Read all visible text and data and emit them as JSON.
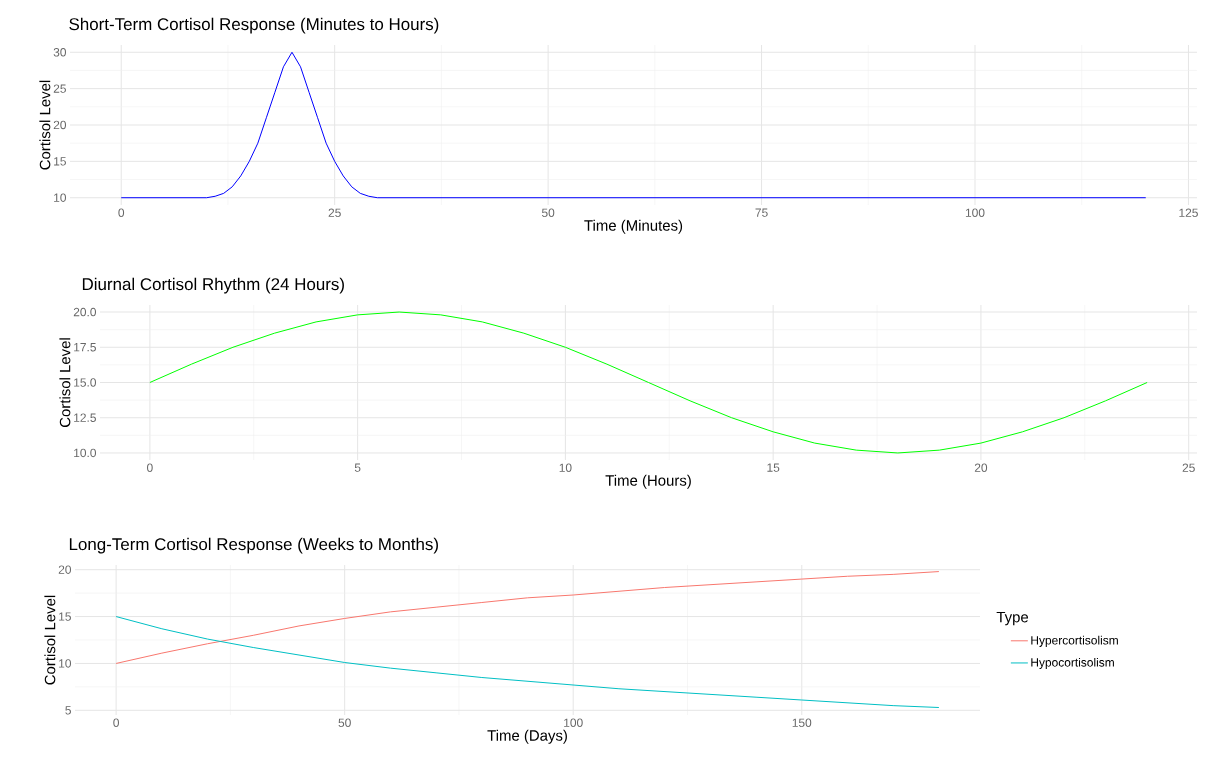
{
  "chart_data": [
    {
      "type": "line",
      "title": "Short-Term Cortisol Response (Minutes to Hours)",
      "xlabel": "Time (Minutes)",
      "ylabel": "Cortisol Level",
      "x": [
        0,
        10,
        11,
        12,
        13,
        14,
        15,
        16,
        17,
        18,
        19,
        20,
        21,
        22,
        23,
        24,
        25,
        26,
        27,
        28,
        29,
        30,
        120
      ],
      "values": [
        10,
        10,
        10.2,
        10.6,
        11.5,
        13,
        15,
        17.5,
        21,
        24.5,
        28,
        30,
        28,
        24.5,
        21,
        17.5,
        15,
        13,
        11.5,
        10.6,
        10.2,
        10,
        10
      ],
      "color": "#0000ff",
      "xlim": [
        -6,
        126
      ],
      "ylim": [
        9,
        31
      ],
      "xticks": [
        0,
        25,
        50,
        75,
        100,
        125
      ],
      "yticks": [
        10,
        15,
        20,
        25,
        30
      ],
      "grid": true
    },
    {
      "type": "line",
      "title": "Diurnal Cortisol Rhythm (24 Hours)",
      "xlabel": "Time (Hours)",
      "ylabel": "Cortisol Level",
      "x": [
        0,
        1,
        2,
        3,
        4,
        5,
        6,
        7,
        8,
        9,
        10,
        11,
        12,
        13,
        14,
        15,
        16,
        17,
        18,
        19,
        20,
        21,
        22,
        23,
        24
      ],
      "values": [
        15,
        16.3,
        17.5,
        18.5,
        19.3,
        19.8,
        20,
        19.8,
        19.3,
        18.5,
        17.5,
        16.3,
        15,
        13.7,
        12.5,
        11.5,
        10.7,
        10.2,
        10,
        10.2,
        10.7,
        11.5,
        12.5,
        13.7,
        15
      ],
      "color": "#00ff00",
      "xlim": [
        -1.2,
        25.2
      ],
      "ylim": [
        9.5,
        20.5
      ],
      "xticks": [
        0,
        5,
        10,
        15,
        20,
        25
      ],
      "yticks": [
        {
          "value": 10,
          "label": "10.0"
        },
        {
          "value": 12.5,
          "label": "12.5"
        },
        {
          "value": 15,
          "label": "15.0"
        },
        {
          "value": 17.5,
          "label": "17.5"
        },
        {
          "value": 20,
          "label": "20.0"
        }
      ],
      "grid": true
    },
    {
      "type": "line",
      "title": "Long-Term Cortisol Response (Weeks to Months)",
      "xlabel": "Time (Days)",
      "ylabel": "Cortisol Level",
      "legend_title": "Type",
      "x": [
        0,
        10,
        20,
        30,
        40,
        50,
        60,
        70,
        80,
        90,
        100,
        110,
        120,
        130,
        140,
        150,
        160,
        170,
        180
      ],
      "series": [
        {
          "name": "Hypercortisolism",
          "color": "#f8766d",
          "values": [
            10,
            11.1,
            12.1,
            13.0,
            14.0,
            14.8,
            15.5,
            16.0,
            16.5,
            17.0,
            17.3,
            17.7,
            18.1,
            18.4,
            18.7,
            19.0,
            19.3,
            19.5,
            19.8
          ]
        },
        {
          "name": "Hypocortisolism",
          "color": "#00bfc4",
          "values": [
            15,
            13.7,
            12.6,
            11.7,
            10.9,
            10.1,
            9.5,
            9.0,
            8.5,
            8.1,
            7.7,
            7.3,
            7.0,
            6.7,
            6.4,
            6.1,
            5.8,
            5.5,
            5.3
          ]
        }
      ],
      "xlim": [
        -9,
        189
      ],
      "ylim": [
        4.5,
        20.5
      ],
      "xticks": [
        0,
        50,
        100,
        150
      ],
      "yticks": [
        5,
        10,
        15,
        20
      ],
      "grid": true,
      "legend": "right"
    }
  ]
}
